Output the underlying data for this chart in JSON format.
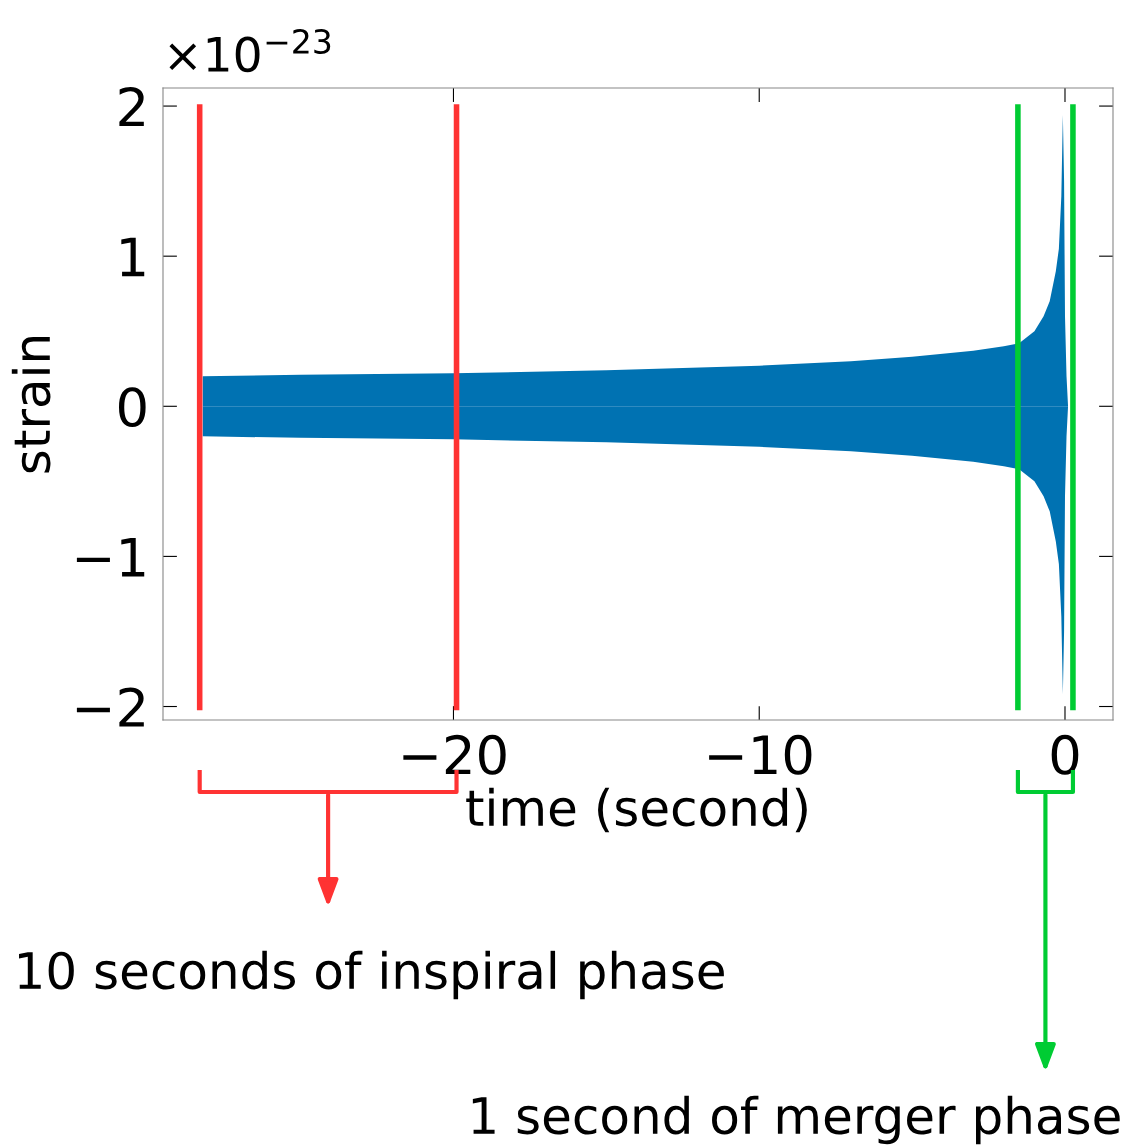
{
  "chart_data": {
    "type": "area",
    "xlabel": "time (second)",
    "ylabel": "strain",
    "series": [
      {
        "type": "area",
        "color": "#0072b2",
        "x": [
          -28.2,
          -25,
          -20,
          -15,
          -10,
          -7,
          -5,
          -3,
          -2,
          -1.5,
          -1,
          -0.7,
          -0.5,
          -0.3,
          -0.2,
          -0.12,
          -0.07,
          -0.03,
          0.0,
          0.05,
          0.1
        ],
        "values": [
          0.2,
          0.21,
          0.22,
          0.24,
          0.27,
          0.3,
          0.33,
          0.37,
          0.4,
          0.42,
          0.5,
          0.6,
          0.7,
          0.9,
          1.05,
          1.4,
          1.94,
          1.5,
          0.6,
          0.2,
          0.0
        ]
      },
      {
        "type": "area",
        "color": "#0072b2",
        "x": [
          -28.2,
          -25,
          -20,
          -15,
          -10,
          -7,
          -5,
          -3,
          -2,
          -1.5,
          -1,
          -0.7,
          -0.5,
          -0.3,
          -0.2,
          -0.12,
          -0.07,
          -0.03,
          0.0,
          0.05,
          0.1
        ],
        "values": [
          -0.2,
          -0.21,
          -0.22,
          -0.24,
          -0.27,
          -0.3,
          -0.33,
          -0.37,
          -0.4,
          -0.42,
          -0.5,
          -0.6,
          -0.7,
          -0.9,
          -1.05,
          -1.4,
          -1.92,
          -1.5,
          -0.6,
          -0.2,
          0.0
        ]
      }
    ],
    "xlim": [
      -29.5,
      1.57
    ],
    "ylim": [
      -2.09,
      2.12
    ],
    "xticks": [
      {
        "value": -20,
        "label": "−20"
      },
      {
        "value": -10,
        "label": "−10"
      },
      0
    ],
    "yticks": [
      {
        "value": -2,
        "label": "−2"
      },
      {
        "value": -1,
        "label": "−1"
      },
      0,
      1,
      2
    ],
    "ref_lines": [
      {
        "axis": "x",
        "value": -28.3,
        "color": "#ff3333"
      },
      {
        "axis": "x",
        "value": -19.9,
        "color": "#ff3333"
      },
      {
        "axis": "x",
        "value": -1.54,
        "color": "#00cc33"
      },
      {
        "axis": "x",
        "value": 0.26,
        "color": "#00cc33"
      }
    ],
    "annotations": [
      "×10$^{−23}$",
      "10 seconds of inspiral phase",
      "1 second of merger phase"
    ],
    "grid": false
  }
}
